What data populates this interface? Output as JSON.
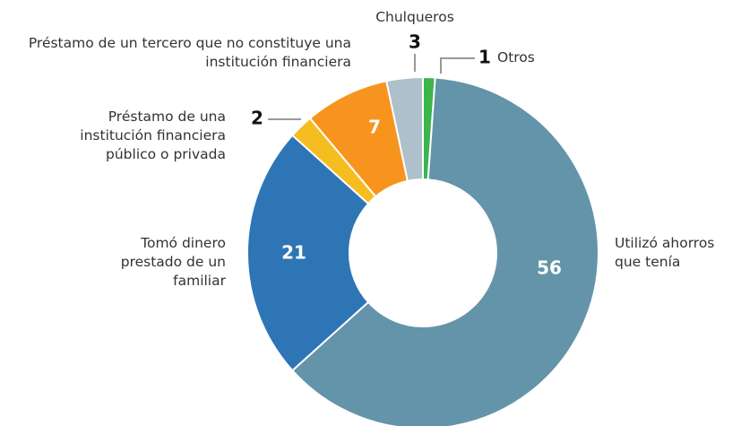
{
  "chart_data": {
    "type": "donut",
    "categories": [
      "Otros",
      "Utilizó ahorros que tenía",
      "Tomó dinero prestado de un familiar",
      "Préstamo de una institución financiera público o privada",
      "Préstamo de un tercero que no constituye una institución financiera",
      "Chulqueros"
    ],
    "values": [
      1,
      56,
      21,
      2,
      7,
      3
    ],
    "colors": [
      "#3cb54a",
      "#6494aa",
      "#2e75b6",
      "#f5bd1f",
      "#f7941d",
      "#adc0cc"
    ]
  }
}
